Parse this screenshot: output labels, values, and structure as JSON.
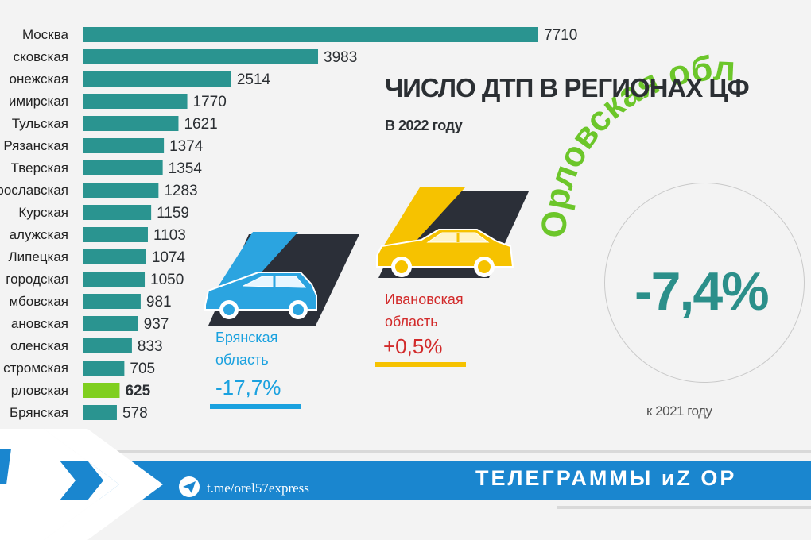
{
  "title": "ЧИСЛО ДТП В РЕГИОНАХ ЦФ",
  "subtitle": "В 2022 году",
  "chart_data": {
    "type": "bar",
    "orientation": "horizontal",
    "categories": [
      "Москва",
      "сковская",
      "онежская",
      "имирская",
      "Тульская",
      "Рязанская",
      "Тверская",
      "рославская",
      "Курская",
      "алужская",
      "Липецкая",
      "городская",
      "мбовская",
      "ановская",
      "оленская",
      "стромская",
      "рловская",
      "Брянская"
    ],
    "values": [
      7710,
      3983,
      2514,
      1770,
      1621,
      1374,
      1354,
      1283,
      1159,
      1103,
      1074,
      1050,
      981,
      937,
      833,
      705,
      625,
      578
    ],
    "highlight_index": 16,
    "bar_color": "#2a9490",
    "highlight_color": "#7fcf1f",
    "xlim": [
      0,
      7710
    ]
  },
  "regions": {
    "bryansk": {
      "line1": "Брянская",
      "line2": "область",
      "pct": "-17,7%",
      "color": "#1aa1df"
    },
    "ivanovo": {
      "line1": "Ивановская",
      "line2": "область",
      "pct": "+0,5%",
      "color": "#d22a2a"
    }
  },
  "orel": {
    "label": "Орловская обл",
    "pct": "-7,4%",
    "note": "к 2021 году",
    "color": "#6cc62a"
  },
  "footer": {
    "text": "ТЕЛЕГРАММЫ иZ ОР",
    "link": "t.me/orel57express"
  },
  "colors": {
    "blue_band": "#1a86cf",
    "car_blue": "#2ba4e0",
    "car_yellow": "#f6c200",
    "dark": "#2b2f38"
  }
}
